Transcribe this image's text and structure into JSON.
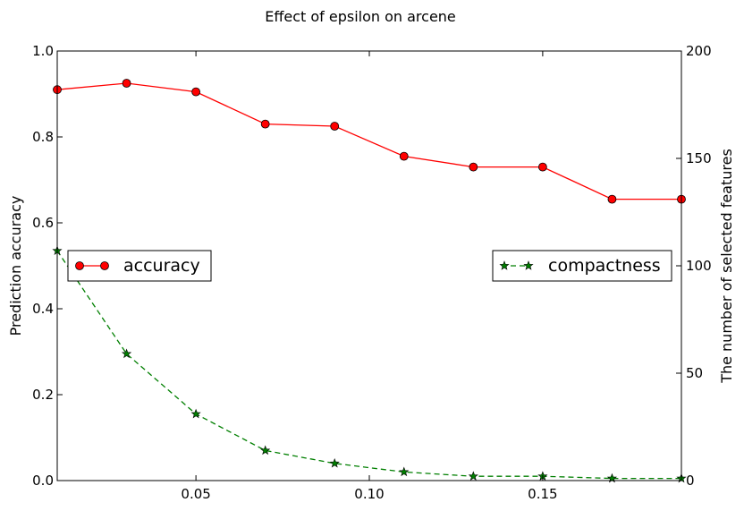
{
  "chart_data": {
    "type": "line",
    "title": "Effect of epsilon on arcene",
    "x": [
      0.01,
      0.03,
      0.05,
      0.07,
      0.09,
      0.11,
      0.13,
      0.15,
      0.17,
      0.19
    ],
    "xlim": [
      0.01,
      0.19
    ],
    "xticks": [
      0.05,
      0.1,
      0.15
    ],
    "xtick_labels": [
      "0.05",
      "0.10",
      "0.15"
    ],
    "ylabel_left": "Prediction accuracy",
    "ylim_left": [
      0.0,
      1.0
    ],
    "yticks_left": [
      "0.0",
      "0.2",
      "0.4",
      "0.6",
      "0.8",
      "1.0"
    ],
    "ylabel_right": "The number of selected features",
    "ylim_right": [
      0,
      200
    ],
    "yticks_right": [
      "0",
      "50",
      "100",
      "150",
      "200"
    ],
    "grid": false,
    "series": [
      {
        "name": "accuracy",
        "axis": "left",
        "values": [
          0.91,
          0.925,
          0.905,
          0.83,
          0.825,
          0.755,
          0.73,
          0.73,
          0.655,
          0.655
        ],
        "color": "#ff0000",
        "marker": "circle",
        "linestyle": "solid",
        "legend_position": "center-left"
      },
      {
        "name": "compactness",
        "axis": "right",
        "values": [
          107,
          59,
          31,
          14,
          8,
          4,
          2,
          2,
          1,
          1
        ],
        "color": "#007f00",
        "marker": "star",
        "linestyle": "dashed",
        "legend_position": "center-right"
      }
    ]
  }
}
